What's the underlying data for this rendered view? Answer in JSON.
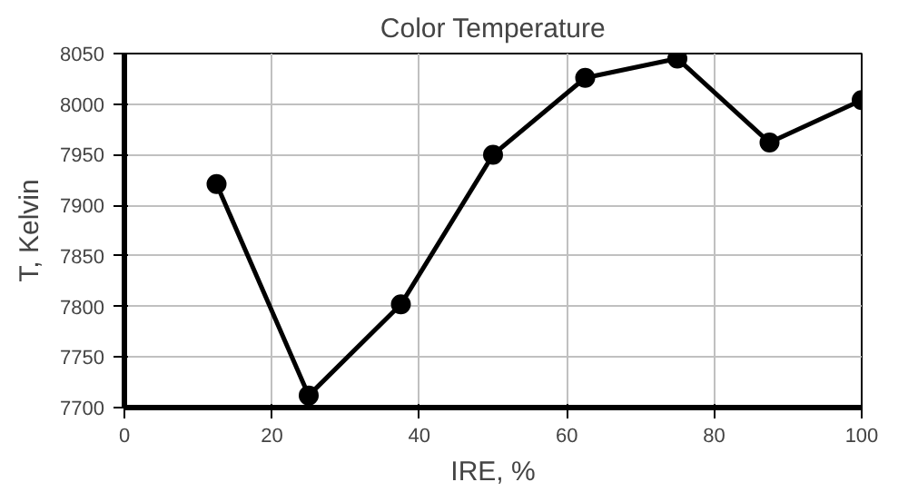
{
  "chart_data": {
    "type": "line",
    "title": "Color Temperature",
    "xlabel": "IRE, %",
    "ylabel": "T, Kelvin",
    "x": [
      12.5,
      25,
      37.5,
      50,
      62.5,
      75,
      87.5,
      100
    ],
    "series": [
      {
        "color": "#000000",
        "values": [
          7921,
          7712,
          7802,
          7950,
          8026,
          8045,
          7962,
          8004
        ]
      }
    ],
    "xlim": [
      0,
      100
    ],
    "xticks": [
      0,
      20,
      40,
      60,
      80,
      100
    ],
    "ylim": [
      7700,
      8050
    ],
    "yticks": [
      7700,
      7750,
      7800,
      7850,
      7900,
      7950,
      8000,
      8050
    ],
    "grid": true,
    "marker": "circle",
    "line_style": "solid"
  }
}
